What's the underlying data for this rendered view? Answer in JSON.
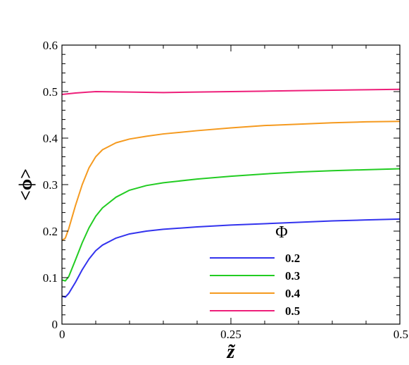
{
  "chart_data": {
    "type": "line",
    "xlabel": "z̃",
    "ylabel": "<ϕ>",
    "xlim": [
      0,
      0.5
    ],
    "ylim": [
      0,
      0.6
    ],
    "x_ticks": [
      0,
      0.25,
      0.5
    ],
    "x_tick_labels": [
      "0",
      "0.25",
      "0.5"
    ],
    "y_ticks": [
      0,
      0.1,
      0.2,
      0.3,
      0.4,
      0.5,
      0.6
    ],
    "y_tick_labels": [
      "0",
      "0.1",
      "0.2",
      "0.3",
      "0.4",
      "0.5",
      "0.6"
    ],
    "grid": false,
    "legend_title": "Φ",
    "legend_position": "bottom-right",
    "series": [
      {
        "name": "0.2",
        "color": "#3333ee",
        "x": [
          0,
          0.005,
          0.01,
          0.02,
          0.03,
          0.04,
          0.05,
          0.06,
          0.08,
          0.1,
          0.125,
          0.15,
          0.2,
          0.25,
          0.3,
          0.35,
          0.4,
          0.45,
          0.5
        ],
        "y": [
          0.06,
          0.058,
          0.066,
          0.09,
          0.117,
          0.14,
          0.158,
          0.17,
          0.185,
          0.194,
          0.2,
          0.204,
          0.209,
          0.213,
          0.216,
          0.219,
          0.222,
          0.224,
          0.226
        ]
      },
      {
        "name": "0.3",
        "color": "#22cc22",
        "x": [
          0,
          0.005,
          0.01,
          0.02,
          0.03,
          0.04,
          0.05,
          0.06,
          0.08,
          0.1,
          0.125,
          0.15,
          0.2,
          0.25,
          0.3,
          0.35,
          0.4,
          0.45,
          0.5
        ],
        "y": [
          0.095,
          0.093,
          0.102,
          0.138,
          0.175,
          0.207,
          0.232,
          0.25,
          0.273,
          0.288,
          0.298,
          0.304,
          0.312,
          0.318,
          0.323,
          0.327,
          0.33,
          0.332,
          0.334
        ]
      },
      {
        "name": "0.4",
        "color": "#f59a1f",
        "x": [
          0,
          0.005,
          0.01,
          0.02,
          0.03,
          0.04,
          0.05,
          0.06,
          0.08,
          0.1,
          0.125,
          0.15,
          0.2,
          0.25,
          0.3,
          0.35,
          0.4,
          0.45,
          0.5
        ],
        "y": [
          0.18,
          0.185,
          0.205,
          0.255,
          0.3,
          0.336,
          0.36,
          0.375,
          0.39,
          0.398,
          0.404,
          0.409,
          0.416,
          0.422,
          0.427,
          0.43,
          0.433,
          0.435,
          0.436
        ]
      },
      {
        "name": "0.5",
        "color": "#ee1f7a",
        "x": [
          0,
          0.02,
          0.05,
          0.1,
          0.15,
          0.2,
          0.25,
          0.3,
          0.35,
          0.4,
          0.45,
          0.5
        ],
        "y": [
          0.494,
          0.497,
          0.5,
          0.499,
          0.498,
          0.499,
          0.5,
          0.501,
          0.502,
          0.503,
          0.504,
          0.505
        ]
      }
    ]
  }
}
